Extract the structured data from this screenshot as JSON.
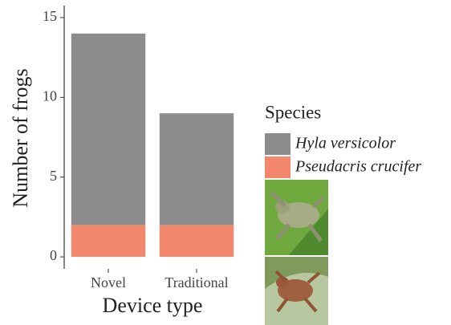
{
  "chart_data": {
    "type": "stacked-bar",
    "x_label": "Device type",
    "y_label": "Number of frogs",
    "categories": [
      "Novel",
      "Traditional"
    ],
    "series": [
      {
        "name": "Hyla versicolor",
        "color": "#8c8c8c",
        "values": [
          12,
          7
        ]
      },
      {
        "name": "Pseudacris crucifer",
        "color": "#f2876c",
        "values": [
          2,
          2
        ]
      }
    ],
    "ylim": [
      -0.75,
      15.75
    ],
    "yticks": [
      0,
      5,
      10,
      15
    ],
    "legend_title": "Species",
    "legend_position": "right",
    "grid": false
  }
}
